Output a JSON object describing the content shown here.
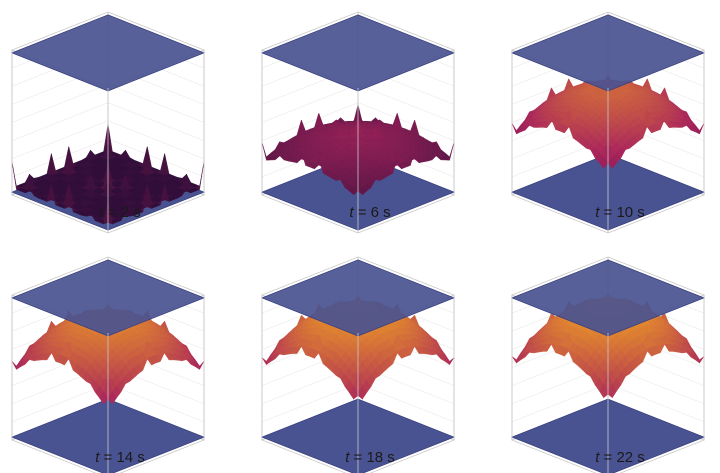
{
  "panels": [
    {
      "var": "t",
      "rest": " = 2 s",
      "level": 0.0
    },
    {
      "var": "t",
      "rest": " = 6 s",
      "level": 0.35
    },
    {
      "var": "t",
      "rest": " = 10 s",
      "level": 0.68
    },
    {
      "var": "t",
      "rest": " = 14 s",
      "level": 0.8
    },
    {
      "var": "t",
      "rest": " = 18 s",
      "level": 0.86
    },
    {
      "var": "t",
      "rest": " = 22 s",
      "level": 0.88
    }
  ],
  "colors": {
    "plate": "#4a5391",
    "plate_edge": "#3a4280",
    "box_line": "#c8c8c8",
    "surface_low": "#1a0a33",
    "surface_mid": "#a8235c",
    "surface_high": "#f3a51f"
  }
}
